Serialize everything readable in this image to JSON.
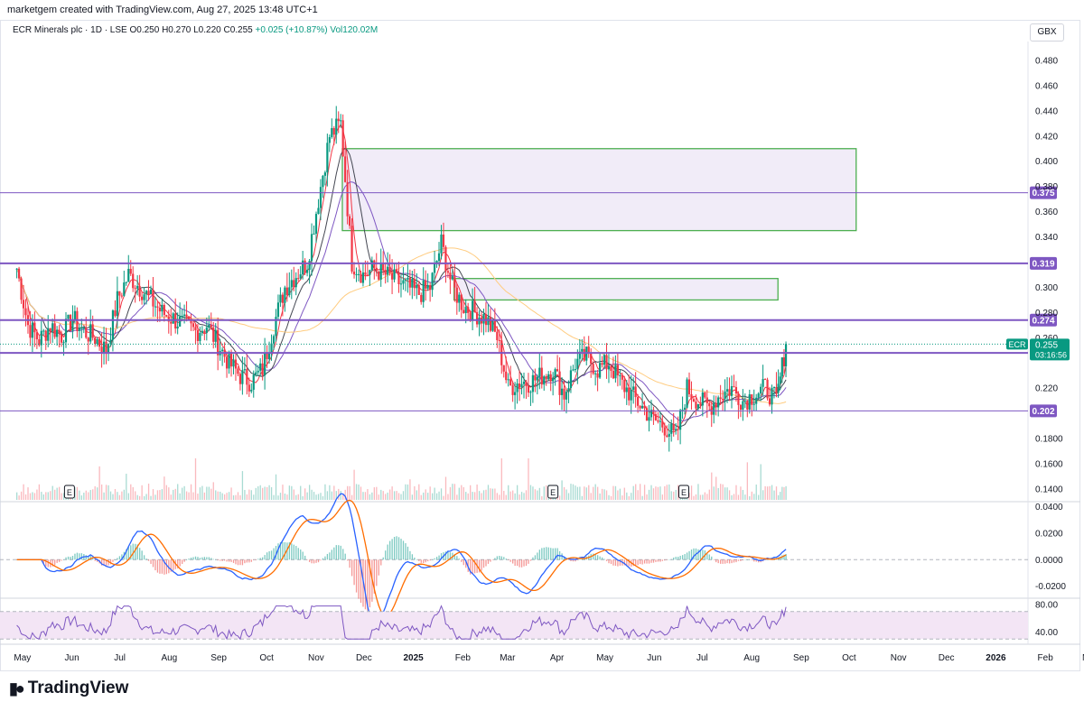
{
  "header": {
    "credit": "marketgem created with TradingView.com, Aug 27, 2025 13:48 UTC+1"
  },
  "legend": {
    "symbol": "ECR Minerals plc · 1D · LSE",
    "open": "O0.250",
    "high": "H0.270",
    "low": "L0.220",
    "close": "C0.255",
    "change": "+0.025 (+10.87%)",
    "volume": "Vol120.02M"
  },
  "currency": "GBX",
  "footer": {
    "logo": "TradingView"
  },
  "colors": {
    "up": "#089981",
    "down": "#f23645",
    "level_line": "#7e57c2",
    "zone_border": "#4caf50",
    "zone_fill": "#ede7f6",
    "macd_line": "#2962ff",
    "signal_line": "#ff6d00",
    "rsi_line": "#7e57c2",
    "rsi_band": "#f3e5f5",
    "ma_short": "#f23645",
    "ma_mid": "#7e57c2",
    "ma_dark": "#434651",
    "ma_200": "#ffcc80"
  },
  "chart_data": {
    "type": "candlestick",
    "price_axis": {
      "ticks": [
        "0.480",
        "0.460",
        "0.440",
        "0.420",
        "0.400",
        "0.380",
        "0.360",
        "0.340",
        "0.300",
        "0.280",
        "0.260",
        "0.220",
        "0.1800",
        "0.1600",
        "0.1400"
      ],
      "ylim": [
        0.13,
        0.495
      ]
    },
    "x_axis": {
      "ticks": [
        "May",
        "Jun",
        "Jul",
        "Aug",
        "Sep",
        "Oct",
        "Nov",
        "Dec",
        "2025",
        "Feb",
        "Mar",
        "Apr",
        "May",
        "Jun",
        "Jul",
        "Aug",
        "Sep",
        "Oct",
        "Nov",
        "Dec",
        "2026",
        "Feb",
        "Mar"
      ],
      "bold_ticks": [
        "2025",
        "2026"
      ]
    },
    "horizontal_levels": [
      {
        "label": "0.375",
        "value": 0.375,
        "bold": false
      },
      {
        "label": "0.319",
        "value": 0.319,
        "bold": true
      },
      {
        "label": "0.274",
        "value": 0.274,
        "bold": true
      },
      {
        "label": "0.248",
        "value": 0.248,
        "bold": true
      },
      {
        "label": "0.202",
        "value": 0.202,
        "bold": false
      }
    ],
    "zones": [
      {
        "from": "2024-11-22",
        "to": "2025-10-10",
        "top": 0.41,
        "bottom": 0.345
      },
      {
        "from": "2025-01-31",
        "to": "2025-08-22",
        "top": 0.307,
        "bottom": 0.29
      }
    ],
    "last_price": {
      "symbol": "ECR",
      "price": "0.255",
      "countdown": "03:16:56",
      "value": 0.255
    },
    "earnings_markers": [
      {
        "label": "E",
        "date": "2024-06-04"
      },
      {
        "label": "E",
        "date": "2025-04-03"
      },
      {
        "label": "E",
        "date": "2025-06-24"
      }
    ],
    "series": [
      {
        "date": "2024-05-02",
        "close": 0.315
      },
      {
        "date": "2024-05-09",
        "close": 0.27
      },
      {
        "date": "2024-05-16",
        "close": 0.258
      },
      {
        "date": "2024-05-23",
        "close": 0.27
      },
      {
        "date": "2024-05-30",
        "close": 0.262
      },
      {
        "date": "2024-06-06",
        "close": 0.275
      },
      {
        "date": "2024-06-13",
        "close": 0.265
      },
      {
        "date": "2024-06-20",
        "close": 0.26
      },
      {
        "date": "2024-06-27",
        "close": 0.25
      },
      {
        "date": "2024-07-04",
        "close": 0.29
      },
      {
        "date": "2024-07-11",
        "close": 0.31
      },
      {
        "date": "2024-07-18",
        "close": 0.3
      },
      {
        "date": "2024-07-25",
        "close": 0.29
      },
      {
        "date": "2024-08-01",
        "close": 0.28
      },
      {
        "date": "2024-08-08",
        "close": 0.275
      },
      {
        "date": "2024-08-15",
        "close": 0.27
      },
      {
        "date": "2024-08-22",
        "close": 0.265
      },
      {
        "date": "2024-08-29",
        "close": 0.27
      },
      {
        "date": "2024-09-05",
        "close": 0.255
      },
      {
        "date": "2024-09-12",
        "close": 0.24
      },
      {
        "date": "2024-09-19",
        "close": 0.23
      },
      {
        "date": "2024-09-26",
        "close": 0.225
      },
      {
        "date": "2024-10-03",
        "close": 0.235
      },
      {
        "date": "2024-10-10",
        "close": 0.27
      },
      {
        "date": "2024-10-17",
        "close": 0.3
      },
      {
        "date": "2024-10-24",
        "close": 0.31
      },
      {
        "date": "2024-10-31",
        "close": 0.32
      },
      {
        "date": "2024-11-07",
        "close": 0.37
      },
      {
        "date": "2024-11-14",
        "close": 0.42
      },
      {
        "date": "2024-11-21",
        "close": 0.43
      },
      {
        "date": "2024-11-28",
        "close": 0.32
      },
      {
        "date": "2024-12-05",
        "close": 0.31
      },
      {
        "date": "2024-12-12",
        "close": 0.315
      },
      {
        "date": "2024-12-19",
        "close": 0.31
      },
      {
        "date": "2024-12-26",
        "close": 0.305
      },
      {
        "date": "2025-01-02",
        "close": 0.3
      },
      {
        "date": "2025-01-09",
        "close": 0.295
      },
      {
        "date": "2025-01-16",
        "close": 0.3
      },
      {
        "date": "2025-01-23",
        "close": 0.335
      },
      {
        "date": "2025-01-30",
        "close": 0.3
      },
      {
        "date": "2025-02-06",
        "close": 0.285
      },
      {
        "date": "2025-02-13",
        "close": 0.28
      },
      {
        "date": "2025-02-20",
        "close": 0.275
      },
      {
        "date": "2025-02-27",
        "close": 0.26
      },
      {
        "date": "2025-03-06",
        "close": 0.22
      },
      {
        "date": "2025-03-13",
        "close": 0.225
      },
      {
        "date": "2025-03-20",
        "close": 0.225
      },
      {
        "date": "2025-03-27",
        "close": 0.23
      },
      {
        "date": "2025-04-03",
        "close": 0.235
      },
      {
        "date": "2025-04-10",
        "close": 0.215
      },
      {
        "date": "2025-04-17",
        "close": 0.24
      },
      {
        "date": "2025-04-24",
        "close": 0.245
      },
      {
        "date": "2025-05-01",
        "close": 0.235
      },
      {
        "date": "2025-05-08",
        "close": 0.24
      },
      {
        "date": "2025-05-15",
        "close": 0.225
      },
      {
        "date": "2025-05-22",
        "close": 0.215
      },
      {
        "date": "2025-05-29",
        "close": 0.205
      },
      {
        "date": "2025-06-05",
        "close": 0.195
      },
      {
        "date": "2025-06-12",
        "close": 0.19
      },
      {
        "date": "2025-06-19",
        "close": 0.18
      },
      {
        "date": "2025-06-26",
        "close": 0.22
      },
      {
        "date": "2025-07-03",
        "close": 0.21
      },
      {
        "date": "2025-07-10",
        "close": 0.205
      },
      {
        "date": "2025-07-17",
        "close": 0.215
      },
      {
        "date": "2025-07-24",
        "close": 0.22
      },
      {
        "date": "2025-07-31",
        "close": 0.21
      },
      {
        "date": "2025-08-07",
        "close": 0.215
      },
      {
        "date": "2025-08-14",
        "close": 0.22
      },
      {
        "date": "2025-08-21",
        "close": 0.21
      },
      {
        "date": "2025-08-27",
        "close": 0.255
      }
    ],
    "macd_axis": {
      "ticks": [
        "0.0400",
        "0.0200",
        "0.0000",
        "-0.0200"
      ],
      "ylim": [
        -0.027,
        0.041
      ]
    },
    "rsi_axis": {
      "ticks": [
        "80.00",
        "40.00"
      ],
      "ylim": [
        25,
        88
      ],
      "band": [
        30,
        70
      ]
    }
  }
}
